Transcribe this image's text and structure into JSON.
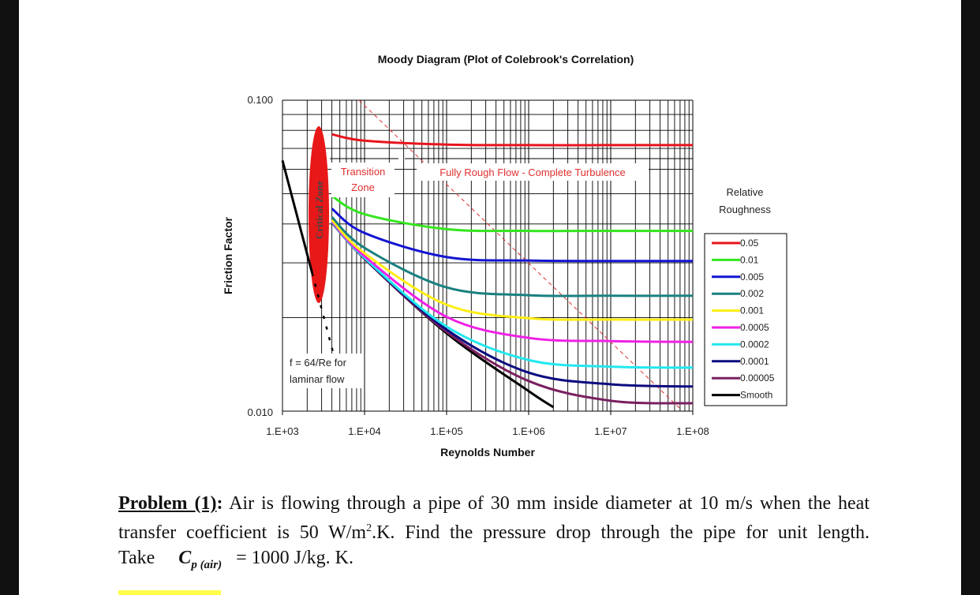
{
  "chart_data": {
    "type": "line",
    "title": "Moody Diagram (Plot of Colebrook's Correlation)",
    "xlabel": "Reynolds Number",
    "ylabel": "Friction Factor",
    "xscale": "log",
    "yscale": "log",
    "xlim": [
      1000,
      100000000
    ],
    "ylim": [
      0.01,
      0.1
    ],
    "grid": true,
    "x_tick_labels": [
      "1.E+03",
      "1.E+04",
      "1.E+05",
      "1.E+06",
      "1.E+07",
      "1.E+08"
    ],
    "y_tick_labels": [
      "0.010",
      "0.100"
    ],
    "legend_title": "Relative Roughness",
    "legend_placement": "right",
    "x": [
      4000,
      10000,
      100000,
      1000000,
      10000000,
      100000000
    ],
    "series": [
      {
        "name": "0.05",
        "color": "#e8141c",
        "values": [
          0.0777,
          0.0741,
          0.072,
          0.0717,
          0.0717,
          0.0717
        ]
      },
      {
        "name": "0.01",
        "color": "#33e61c",
        "values": [
          0.0492,
          0.043,
          0.0385,
          0.038,
          0.038,
          0.038
        ]
      },
      {
        "name": "0.005",
        "color": "#1414d2",
        "values": [
          0.0448,
          0.0374,
          0.0313,
          0.0305,
          0.0304,
          0.0304
        ]
      },
      {
        "name": "0.002",
        "color": "#1a8080",
        "values": [
          0.0421,
          0.0335,
          0.025,
          0.0236,
          0.0235,
          0.0235
        ]
      },
      {
        "name": "0.001",
        "color": "#ffee14",
        "values": [
          0.0412,
          0.0322,
          0.022,
          0.0199,
          0.0197,
          0.0197
        ]
      },
      {
        "name": "0.0005",
        "color": "#f020e6",
        "values": [
          0.0408,
          0.0315,
          0.0201,
          0.0172,
          0.0168,
          0.0167
        ]
      },
      {
        "name": "0.0002",
        "color": "#22e8f0",
        "values": [
          0.0406,
          0.0311,
          0.0187,
          0.0146,
          0.0139,
          0.0138
        ]
      },
      {
        "name": "0.0001",
        "color": "#0a0a80",
        "values": [
          0.0405,
          0.031,
          0.0183,
          0.0133,
          0.0122,
          0.012
        ]
      },
      {
        "name": "0.00005",
        "color": "#7a2060",
        "values": [
          0.0405,
          0.0309,
          0.018,
          0.0125,
          0.0108,
          0.0106
        ]
      },
      {
        "name": "Smooth",
        "color": "#000000",
        "x": [
          4000,
          10000,
          100000,
          1000000,
          2000000
        ],
        "values": [
          0.0404,
          0.0309,
          0.0178,
          0.0116,
          0.0103
        ]
      }
    ],
    "laminar": {
      "x": [
        1000,
        2300
      ],
      "values": [
        0.064,
        0.0278
      ],
      "dashed_to": {
        "x": 4500,
        "value": 0.0142
      }
    },
    "annotations": {
      "critical_zone": "Critical Zone",
      "transition": [
        "Transition",
        "Zone"
      ],
      "fully_rough": "Fully Rough Flow - Complete Turbulence",
      "laminar": [
        "f = 64/Re for",
        "laminar flow"
      ]
    },
    "annotation_color": "#e03030"
  },
  "problem": {
    "label": "Problem (1)",
    "line1": "Air is flowing through a pipe of 30 mm inside diameter at 10 m/s when the heat",
    "line2a": "transfer coefficient is 50 W/m",
    "line2sup": "2",
    "line2b": ".K. Find the pressure drop through the pipe for unit length.",
    "take": "Take",
    "cp": "C",
    "cp_sub": "p (air)",
    "eq": "= 1000  J/kg. K."
  }
}
